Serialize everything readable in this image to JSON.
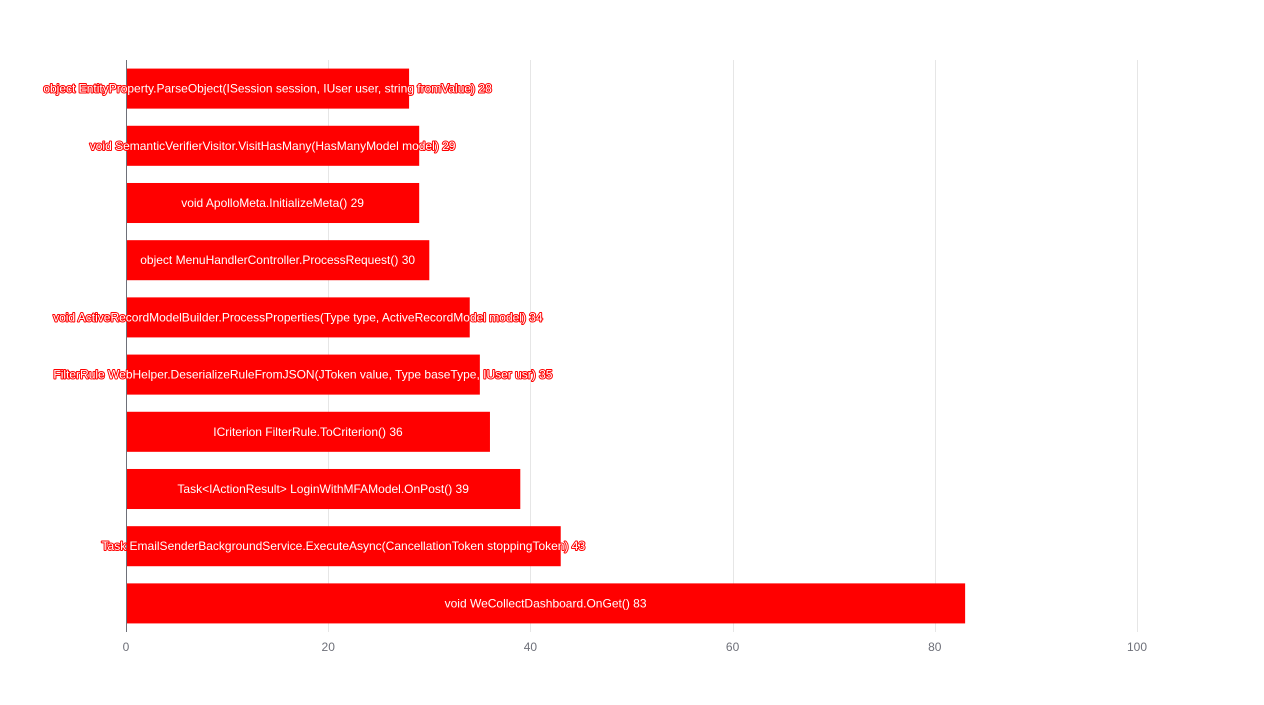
{
  "chart_data": {
    "type": "bar",
    "orientation": "horizontal",
    "title": "",
    "xlabel": "",
    "ylabel": "",
    "xlim": [
      0,
      100
    ],
    "xticks": [
      0,
      20,
      40,
      60,
      80,
      100
    ],
    "grid": true,
    "bar_color": "#ff0000",
    "label_color": "#ffffff",
    "categories": [
      "object EntityProperty.ParseObject(ISession session, IUser user, string fromValue)",
      "void SemanticVerifierVisitor.VisitHasMany(HasManyModel model)",
      "void ApolloMeta.InitializeMeta()",
      "object MenuHandlerController.ProcessRequest()",
      "void ActiveRecordModelBuilder.ProcessProperties(Type type, ActiveRecordModel model)",
      "FilterRule WebHelper.DeserializeRuleFromJSON(JToken value, Type baseType, IUser usr)",
      "ICriterion FilterRule.ToCriterion()",
      "Task<IActionResult> LoginWithMFAModel.OnPost()",
      "Task EmailSenderBackgroundService.ExecuteAsync(CancellationToken stoppingToken)",
      "void WeCollectDashboard.OnGet()"
    ],
    "values": [
      28,
      29,
      29,
      30,
      34,
      35,
      36,
      39,
      43,
      83
    ],
    "bar_labels": [
      "object EntityProperty.ParseObject(ISession session, IUser user, string fromValue) 28",
      "void SemanticVerifierVisitor.VisitHasMany(HasManyModel model) 29",
      "void ApolloMeta.InitializeMeta() 29",
      "object MenuHandlerController.ProcessRequest() 30",
      "void ActiveRecordModelBuilder.ProcessProperties(Type type, ActiveRecordModel model) 34",
      "FilterRule WebHelper.DeserializeRuleFromJSON(JToken value, Type baseType, IUser usr) 35",
      "ICriterion FilterRule.ToCriterion() 36",
      "Task<IActionResult> LoginWithMFAModel.OnPost() 39",
      "Task EmailSenderBackgroundService.ExecuteAsync(CancellationToken stoppingToken) 43",
      "void WeCollectDashboard.OnGet() 83"
    ]
  }
}
